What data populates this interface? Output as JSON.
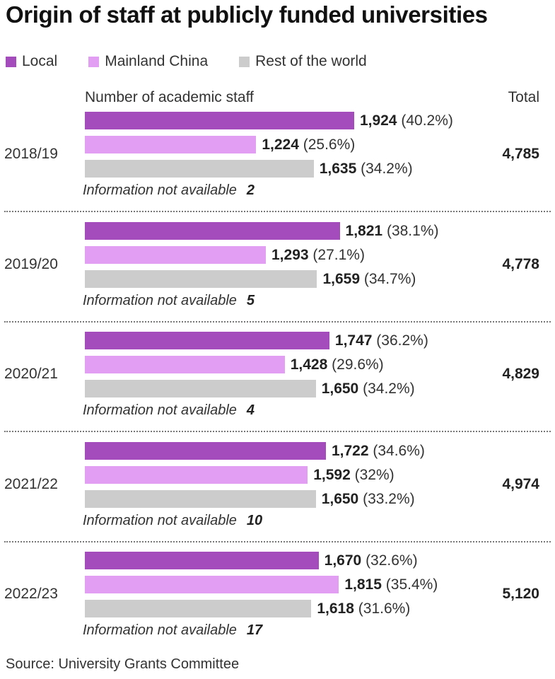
{
  "chart_data": {
    "type": "bar",
    "orientation": "horizontal",
    "title": "Origin of staff at publicly funded universities",
    "subtitle": "Number of academic staff",
    "total_header": "Total",
    "na_label": "Information not available",
    "source": "Source: University Grants Committee",
    "legend": [
      {
        "name": "Local",
        "color": "#a54cbd"
      },
      {
        "name": "Mainland China",
        "color": "#e29ef2"
      },
      {
        "name": "Rest of the world",
        "color": "#cccccc"
      }
    ],
    "categories": [
      "2018/19",
      "2019/20",
      "2020/21",
      "2021/22",
      "2022/23"
    ],
    "series": [
      {
        "name": "Local",
        "color": "#a54cbd",
        "values": [
          1924,
          1821,
          1747,
          1722,
          1670
        ],
        "value_labels": [
          "1,924",
          "1,821",
          "1,747",
          "1,722",
          "1,670"
        ],
        "pct_labels": [
          "(40.2%)",
          "(38.1%)",
          "(36.2%)",
          "(34.6%)",
          "(32.6%)"
        ]
      },
      {
        "name": "Mainland China",
        "color": "#e29ef2",
        "values": [
          1224,
          1293,
          1428,
          1592,
          1815
        ],
        "value_labels": [
          "1,224",
          "1,293",
          "1,428",
          "1,592",
          "1,815"
        ],
        "pct_labels": [
          "(25.6%)",
          "(27.1%)",
          "(29.6%)",
          "(32%)",
          "(35.4%)"
        ]
      },
      {
        "name": "Rest of the world",
        "color": "#cccccc",
        "values": [
          1635,
          1659,
          1650,
          1650,
          1618
        ],
        "value_labels": [
          "1,635",
          "1,659",
          "1,650",
          "1,650",
          "1,618"
        ],
        "pct_labels": [
          "(34.2%)",
          "(34.7%)",
          "(34.2%)",
          "(33.2%)",
          "(31.6%)"
        ]
      }
    ],
    "not_available": [
      2,
      5,
      4,
      10,
      17
    ],
    "totals": [
      "4,785",
      "4,778",
      "4,829",
      "4,974",
      "5,120"
    ],
    "xlim": [
      0,
      2000
    ],
    "grid": false,
    "legend_position": "top-left"
  }
}
